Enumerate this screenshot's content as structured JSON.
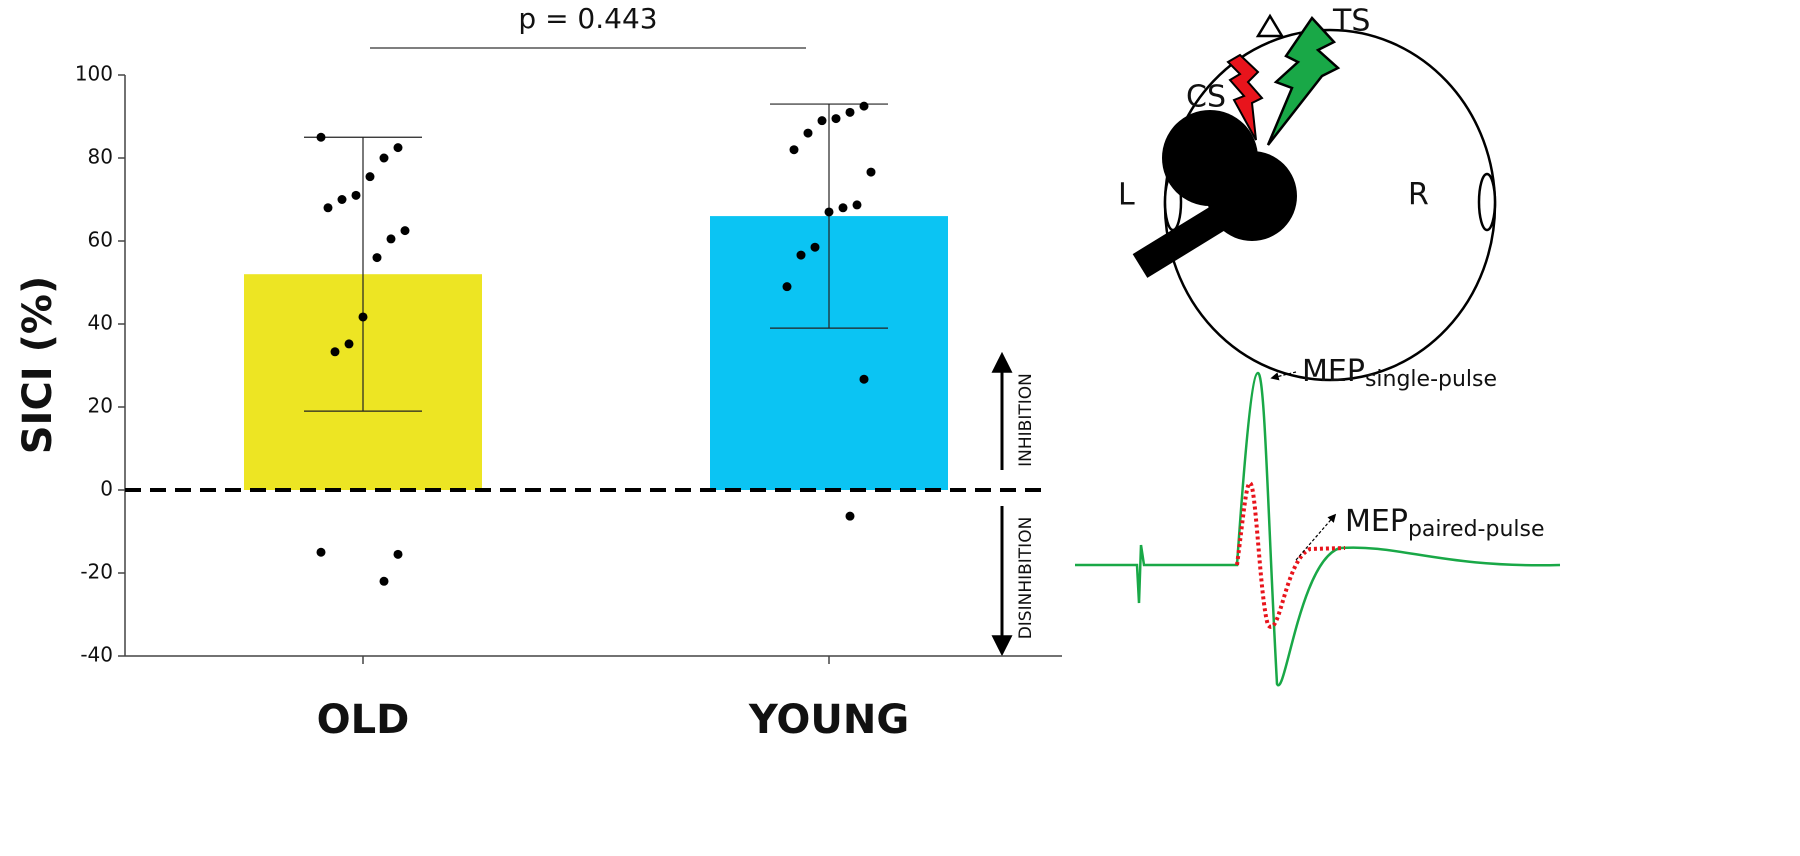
{
  "chart_data": {
    "type": "bar",
    "annotation": "p = 0.443",
    "y_label": "SICI (%)",
    "upper_label": "INHIBITION",
    "lower_label": "DISINHIBITION",
    "categories": [
      "OLD",
      "YOUNG"
    ],
    "values": [
      52,
      66
    ],
    "errors": [
      33,
      27
    ],
    "colors": [
      "#ede523",
      "#0bc4f3"
    ],
    "points": [
      [
        85,
        82.5,
        80,
        75.5,
        71,
        70,
        68,
        62.5,
        60.5,
        56,
        41.7,
        35.2,
        33.3,
        -15,
        -15.5,
        -22
      ],
      [
        92.5,
        91,
        89.5,
        89,
        86,
        82,
        76.6,
        68.7,
        68,
        67,
        58.5,
        56.6,
        49,
        26.7,
        -6.3
      ]
    ],
    "ylim": [
      -40,
      100
    ],
    "yticks": [
      -40,
      -20,
      0,
      20,
      40,
      60,
      80,
      100
    ]
  },
  "diagram": {
    "ts": "TS",
    "cs": "CS",
    "left": "L",
    "right": "R",
    "mep_single": {
      "main": "MEP",
      "sub": "single-pulse"
    },
    "mep_paired": {
      "main": "MEP",
      "sub": "paired-pulse"
    }
  }
}
